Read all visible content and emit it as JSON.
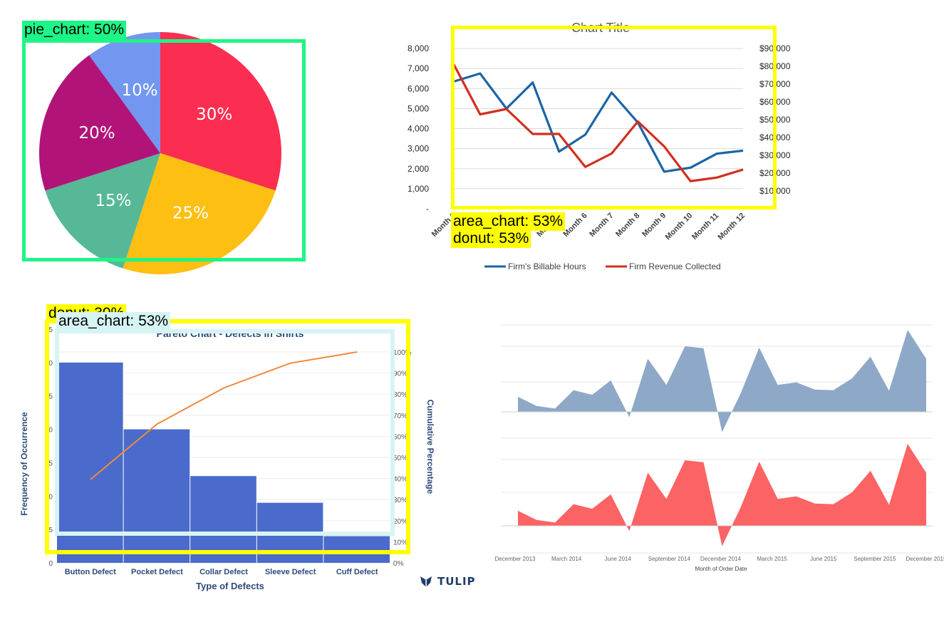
{
  "chart_data": [
    {
      "type": "pie",
      "title": "",
      "slices": [
        {
          "label": "30%",
          "value": 30,
          "color": "#fb2e51"
        },
        {
          "label": "25%",
          "value": 25,
          "color": "#fdbf12"
        },
        {
          "label": "15%",
          "value": 15,
          "color": "#56b896"
        },
        {
          "label": "20%",
          "value": 20,
          "color": "#b21378"
        },
        {
          "label": "10%",
          "value": 10,
          "color": "#7396f0"
        }
      ]
    },
    {
      "type": "line",
      "title": "Chart Title",
      "categories": [
        "Month 1",
        "Month 2",
        "Month 3",
        "Month 4",
        "Month 5",
        "Month 6",
        "Month 7",
        "Month 8",
        "Month 9",
        "Month 10",
        "Month 11",
        "Month 12"
      ],
      "yticks_left": [
        "-",
        "1,000",
        "2,000",
        "3,000",
        "4,000",
        "5,000",
        "6,000",
        "7,000",
        "8,000"
      ],
      "yticks_right": [
        "$10,000",
        "$20,000",
        "$30,000",
        "$40,000",
        "$50,000",
        "$60,000",
        "$70,000",
        "$80,000",
        "$90,000"
      ],
      "ylim_left": [
        0,
        8000
      ],
      "ylim_right": [
        0,
        90000
      ],
      "series": [
        {
          "name": "Firm's Billable Hours",
          "axis": "left",
          "color": "#1b64a6",
          "values": [
            6350,
            6750,
            5000,
            6300,
            2850,
            3700,
            5800,
            4300,
            1850,
            2050,
            2750,
            2900
          ]
        },
        {
          "name": "Firm Revenue Collected",
          "axis": "right",
          "color": "#d32e1e",
          "values": [
            81000,
            53000,
            56000,
            42000,
            42000,
            23500,
            31000,
            49000,
            35000,
            15500,
            17500,
            22000
          ]
        }
      ]
    },
    {
      "type": "bar",
      "title": "Pareto Chart - Defects in Shirts",
      "xlabel": "Type of Defects",
      "ylabel": "Frequency of Occurrence",
      "y2label": "Cumulative Percentage",
      "categories": [
        "Button Defect",
        "Pocket Defect",
        "Collar Defect",
        "Sleeve Defect",
        "Cuff Defect"
      ],
      "values": [
        30,
        20,
        13,
        9,
        4
      ],
      "ylim": [
        0,
        35
      ],
      "yticks": [
        "0",
        "5",
        "10",
        "15",
        "20",
        "25",
        "30",
        "35"
      ],
      "cumulative_percent": [
        39.5,
        65.8,
        82.9,
        94.7,
        100
      ],
      "y2ticks": [
        "0%",
        "10%",
        "20%",
        "30%",
        "40%",
        "50%",
        "60%",
        "70%",
        "80%",
        "90%",
        "100%"
      ],
      "bar_color": "#4a6bcb",
      "line_color": "#f08a3c"
    },
    {
      "type": "area",
      "xlabel": "Month of Order Date",
      "xticks": [
        "December 2013",
        "March 2014",
        "June 2014",
        "September 2014",
        "December 2014",
        "March 2015",
        "June 2015",
        "September 2015",
        "December 2015"
      ],
      "series": [
        {
          "name": "",
          "color": "#8ea9c7",
          "values": [
            0.23,
            0.09,
            0.05,
            0.33,
            0.26,
            0.48,
            -0.08,
            0.81,
            0.41,
            1.0,
            0.97,
            -0.31,
            0.28,
            0.98,
            0.41,
            0.45,
            0.34,
            0.33,
            0.51,
            0.84,
            0.32,
            1.25,
            0.81
          ]
        },
        {
          "name": "",
          "color": "#fc6364",
          "values": [
            0.23,
            0.09,
            0.05,
            0.33,
            0.26,
            0.48,
            -0.08,
            0.81,
            0.41,
            1.0,
            0.97,
            -0.31,
            0.28,
            0.98,
            0.41,
            0.45,
            0.34,
            0.33,
            0.51,
            0.84,
            0.32,
            1.25,
            0.81
          ]
        }
      ]
    }
  ],
  "brand": {
    "name": "TULIP"
  },
  "overlays": [
    {
      "label": "pie_chart: 50%",
      "color": "#1ef586"
    },
    {
      "label": "area_chart: 53%",
      "color": "#ffff00"
    },
    {
      "label": "donut: 53%",
      "color": "#ffff00"
    },
    {
      "label": "donut: 30%",
      "color": "#ffff00"
    },
    {
      "label": "area_chart: 53%",
      "color": "#d7f4f4"
    }
  ]
}
